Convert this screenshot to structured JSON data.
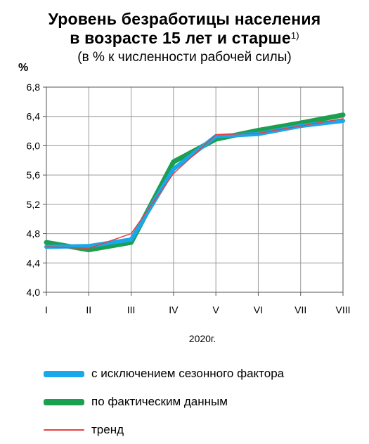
{
  "title_line1": "Уровень безработицы населения",
  "title_line2": "в возрасте 15 лет и старше",
  "title_footnote": "1)",
  "subtitle": "(в % к численности рабочей силы)",
  "unit": "%",
  "chart_data": {
    "type": "line",
    "title": "Уровень безработицы населения в возрасте 15 лет и старше",
    "subtitle": "(в % к численности рабочей силы)",
    "xlabel": "2020г.",
    "ylabel": "%",
    "categories": [
      "I",
      "II",
      "III",
      "IV",
      "V",
      "VI",
      "VII",
      "VIII"
    ],
    "ylim": [
      4.0,
      6.8
    ],
    "yticks": [
      "4,0",
      "4,4",
      "4,8",
      "5,2",
      "5,6",
      "6,0",
      "6,4",
      "6,8"
    ],
    "grid": true,
    "legend_position": "bottom",
    "series": [
      {
        "name": "с исключением сезонного фактора",
        "color": "#1aa7ec",
        "values": [
          4.62,
          4.63,
          4.72,
          5.68,
          6.13,
          6.16,
          6.27,
          6.34
        ]
      },
      {
        "name": "по фактическим данным",
        "color": "#1aa04e",
        "values": [
          4.68,
          4.58,
          4.68,
          5.78,
          6.09,
          6.21,
          6.31,
          6.42
        ]
      },
      {
        "name": "тренд",
        "color": "#e84040",
        "values": [
          4.62,
          4.6,
          4.8,
          5.62,
          6.15,
          6.17,
          6.27,
          6.37
        ]
      }
    ]
  },
  "legend": {
    "items": [
      {
        "label": "с исключением сезонного фактора",
        "color": "#1aa7ec"
      },
      {
        "label": "по фактическим данным",
        "color": "#1aa04e"
      },
      {
        "label": "тренд",
        "color": "#e84040"
      }
    ]
  }
}
